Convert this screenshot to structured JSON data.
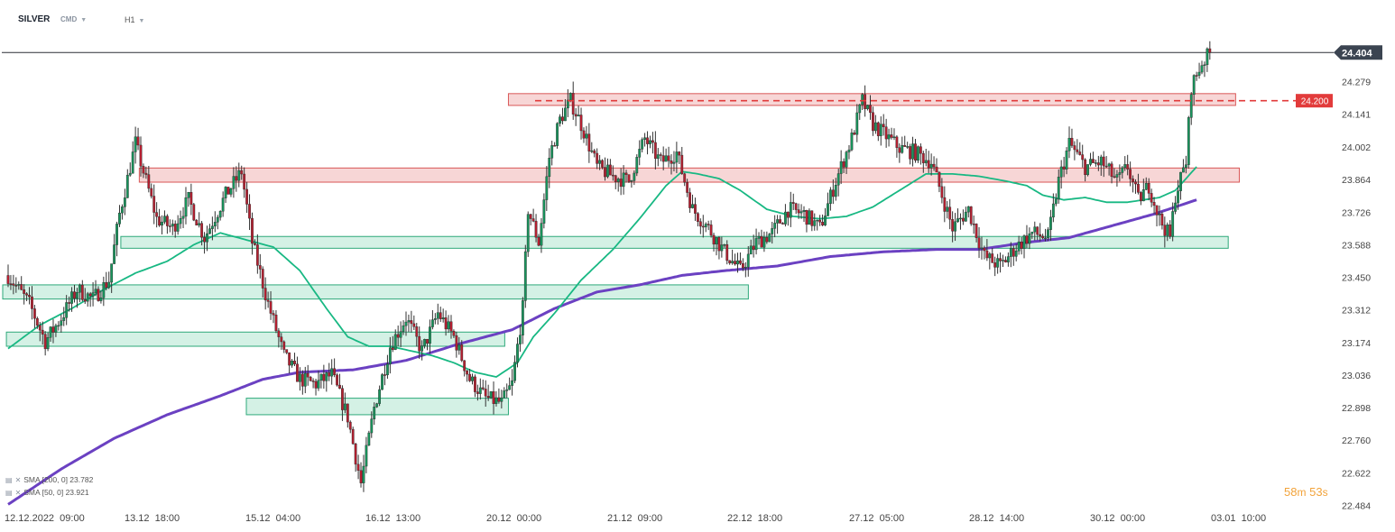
{
  "header": {
    "symbol": "SILVER",
    "instrument_type": "CMD",
    "timeframe": "H1"
  },
  "legend": [
    {
      "label": "SMA  [200,  0]  23.782"
    },
    {
      "label": "SMA  [50,  0]  23.921"
    }
  ],
  "countdown": {
    "minutes": "58",
    "minutes_unit": "m",
    "seconds": "53",
    "seconds_unit": "s"
  },
  "chart_data": {
    "type": "candlestick",
    "symbol": "SILVER",
    "timeframe": "H1",
    "ylim": [
      22.45,
      24.53
    ],
    "y_ticks": [
      "24.279",
      "24.141",
      "24.002",
      "23.864",
      "23.726",
      "23.588",
      "23.450",
      "23.312",
      "23.174",
      "23.036",
      "22.898",
      "22.760",
      "22.622",
      "22.484"
    ],
    "x_ticks": [
      "12.12.2022  09:00",
      "13.12  18:00",
      "15.12  04:00",
      "16.12  13:00",
      "20.12  00:00",
      "21.12  09:00",
      "22.12  18:00",
      "27.12  05:00",
      "28.12  14:00",
      "30.12  00:00",
      "03.01  10:00"
    ],
    "last_price": {
      "value": 24.404,
      "label": "24.404",
      "color": "#3b4451"
    },
    "level_marker": {
      "value": 24.2,
      "label": "24.200",
      "color": "#e23b3b"
    },
    "colors": {
      "up": "#18945c",
      "down": "#b51f30",
      "sma50": "#18b883",
      "sma200": "#6b41c2",
      "resistance_fill": "#f6cfcf",
      "resistance_stroke": "#d95757",
      "support_fill": "#cdeee0",
      "support_stroke": "#2ea97a"
    },
    "zones": [
      {
        "kind": "resistance",
        "x_start": "20.12 02:00",
        "x_end": "03.01 07:00",
        "low": 24.18,
        "high": 24.23
      },
      {
        "kind": "resistance",
        "x_start": "13.12 22:00",
        "x_end": "03.01 08:00",
        "low": 23.855,
        "high": 23.915
      },
      {
        "kind": "support",
        "x_start": "13.12 17:00",
        "x_end": "03.01 05:00",
        "low": 23.575,
        "high": 23.625
      },
      {
        "kind": "support",
        "x_start": "12.12 09:00",
        "x_end": "22.12 19:00",
        "low": 23.36,
        "high": 23.42
      },
      {
        "kind": "support",
        "x_start": "12.12 10:00",
        "x_end": "20.12 01:00",
        "low": 23.16,
        "high": 23.22
      },
      {
        "kind": "support",
        "x_start": "15.12 03:00",
        "x_end": "20.12 02:00",
        "low": 22.87,
        "high": 22.94
      }
    ],
    "close_path": [
      [
        0,
        23.46
      ],
      [
        8,
        23.34
      ],
      [
        14,
        23.18
      ],
      [
        20,
        23.28
      ],
      [
        26,
        23.4
      ],
      [
        32,
        23.36
      ],
      [
        38,
        23.44
      ],
      [
        42,
        23.72
      ],
      [
        48,
        24.02
      ],
      [
        56,
        23.7
      ],
      [
        62,
        23.66
      ],
      [
        68,
        23.78
      ],
      [
        74,
        23.62
      ],
      [
        82,
        23.8
      ],
      [
        88,
        23.9
      ],
      [
        92,
        23.6
      ],
      [
        98,
        23.34
      ],
      [
        104,
        23.12
      ],
      [
        110,
        23.02
      ],
      [
        116,
        23.0
      ],
      [
        122,
        23.04
      ],
      [
        128,
        22.86
      ],
      [
        133,
        22.58
      ],
      [
        138,
        22.9
      ],
      [
        144,
        23.16
      ],
      [
        150,
        23.28
      ],
      [
        156,
        23.14
      ],
      [
        162,
        23.3
      ],
      [
        168,
        23.2
      ],
      [
        174,
        23.02
      ],
      [
        180,
        22.94
      ],
      [
        186,
        22.92
      ],
      [
        190,
        23.0
      ],
      [
        194,
        23.32
      ],
      [
        196,
        23.74
      ],
      [
        200,
        23.6
      ],
      [
        204,
        23.96
      ],
      [
        208,
        24.12
      ],
      [
        212,
        24.2
      ],
      [
        216,
        24.1
      ],
      [
        222,
        23.92
      ],
      [
        228,
        23.88
      ],
      [
        234,
        23.86
      ],
      [
        240,
        24.04
      ],
      [
        246,
        23.94
      ],
      [
        252,
        23.98
      ],
      [
        258,
        23.74
      ],
      [
        264,
        23.66
      ],
      [
        270,
        23.56
      ],
      [
        276,
        23.48
      ],
      [
        282,
        23.6
      ],
      [
        288,
        23.64
      ],
      [
        294,
        23.74
      ],
      [
        300,
        23.72
      ],
      [
        306,
        23.66
      ],
      [
        312,
        23.86
      ],
      [
        318,
        24.04
      ],
      [
        322,
        24.2
      ],
      [
        326,
        24.1
      ],
      [
        330,
        24.06
      ],
      [
        336,
        24.0
      ],
      [
        342,
        23.98
      ],
      [
        348,
        23.94
      ],
      [
        352,
        23.8
      ],
      [
        356,
        23.66
      ],
      [
        362,
        23.74
      ],
      [
        368,
        23.54
      ],
      [
        374,
        23.5
      ],
      [
        380,
        23.58
      ],
      [
        386,
        23.64
      ],
      [
        392,
        23.62
      ],
      [
        396,
        23.86
      ],
      [
        400,
        24.02
      ],
      [
        406,
        23.92
      ],
      [
        412,
        23.94
      ],
      [
        418,
        23.86
      ],
      [
        422,
        23.92
      ],
      [
        426,
        23.78
      ],
      [
        430,
        23.84
      ],
      [
        434,
        23.7
      ],
      [
        438,
        23.62
      ],
      [
        440,
        23.8
      ],
      [
        444,
        23.94
      ],
      [
        446,
        24.26
      ],
      [
        450,
        24.36
      ],
      [
        453,
        24.4
      ]
    ],
    "sma50_path": [
      [
        0,
        23.15
      ],
      [
        12,
        23.25
      ],
      [
        24,
        23.32
      ],
      [
        36,
        23.4
      ],
      [
        48,
        23.47
      ],
      [
        60,
        23.52
      ],
      [
        70,
        23.59
      ],
      [
        80,
        23.64
      ],
      [
        90,
        23.61
      ],
      [
        100,
        23.58
      ],
      [
        110,
        23.48
      ],
      [
        120,
        23.32
      ],
      [
        128,
        23.2
      ],
      [
        136,
        23.16
      ],
      [
        144,
        23.16
      ],
      [
        152,
        23.14
      ],
      [
        160,
        23.12
      ],
      [
        168,
        23.09
      ],
      [
        176,
        23.05
      ],
      [
        184,
        23.03
      ],
      [
        192,
        23.09
      ],
      [
        198,
        23.2
      ],
      [
        206,
        23.3
      ],
      [
        216,
        23.44
      ],
      [
        228,
        23.57
      ],
      [
        238,
        23.7
      ],
      [
        248,
        23.84
      ],
      [
        254,
        23.9
      ],
      [
        260,
        23.89
      ],
      [
        268,
        23.87
      ],
      [
        276,
        23.82
      ],
      [
        286,
        23.74
      ],
      [
        296,
        23.71
      ],
      [
        306,
        23.7
      ],
      [
        316,
        23.71
      ],
      [
        326,
        23.75
      ],
      [
        336,
        23.82
      ],
      [
        346,
        23.89
      ],
      [
        356,
        23.89
      ],
      [
        366,
        23.88
      ],
      [
        376,
        23.86
      ],
      [
        384,
        23.84
      ],
      [
        390,
        23.8
      ],
      [
        398,
        23.78
      ],
      [
        406,
        23.79
      ],
      [
        414,
        23.77
      ],
      [
        422,
        23.77
      ],
      [
        428,
        23.78
      ],
      [
        434,
        23.79
      ],
      [
        440,
        23.82
      ],
      [
        448,
        23.92
      ]
    ],
    "sma200_path": [
      [
        0,
        22.49
      ],
      [
        20,
        22.64
      ],
      [
        40,
        22.77
      ],
      [
        60,
        22.87
      ],
      [
        80,
        22.95
      ],
      [
        96,
        23.02
      ],
      [
        110,
        23.05
      ],
      [
        130,
        23.06
      ],
      [
        150,
        23.1
      ],
      [
        170,
        23.17
      ],
      [
        190,
        23.23
      ],
      [
        206,
        23.32
      ],
      [
        222,
        23.39
      ],
      [
        238,
        23.42
      ],
      [
        254,
        23.46
      ],
      [
        270,
        23.48
      ],
      [
        290,
        23.5
      ],
      [
        310,
        23.54
      ],
      [
        330,
        23.56
      ],
      [
        350,
        23.57
      ],
      [
        366,
        23.57
      ],
      [
        384,
        23.6
      ],
      [
        400,
        23.62
      ],
      [
        416,
        23.67
      ],
      [
        432,
        23.72
      ],
      [
        448,
        23.78
      ]
    ]
  }
}
